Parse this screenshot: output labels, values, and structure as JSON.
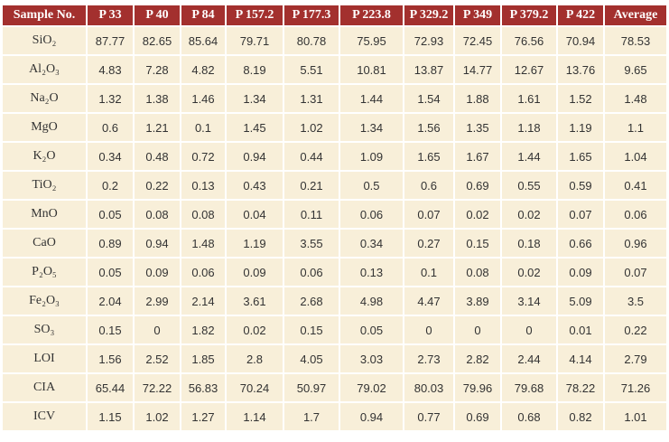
{
  "table": {
    "header": [
      "Sample No.",
      "P 33",
      "P 40",
      "P 84",
      "P 157.2",
      "P 177.3",
      "P 223.8",
      "P 329.2",
      "P 349",
      "P 379.2",
      "P 422",
      "Average"
    ],
    "rows": [
      {
        "label": "SiO₂",
        "values": [
          87.77,
          82.65,
          85.64,
          79.71,
          80.78,
          75.95,
          72.93,
          72.45,
          76.56,
          70.94,
          78.53
        ]
      },
      {
        "label": "Al₂O₃",
        "values": [
          4.83,
          7.28,
          4.82,
          8.19,
          5.51,
          10.81,
          13.87,
          14.77,
          12.67,
          13.76,
          9.65
        ]
      },
      {
        "label": "Na₂O",
        "values": [
          1.32,
          1.38,
          1.46,
          1.34,
          1.31,
          1.44,
          1.54,
          1.88,
          1.61,
          1.52,
          1.48
        ]
      },
      {
        "label": "MgO",
        "values": [
          0.6,
          1.21,
          0.1,
          1.45,
          1.02,
          1.34,
          1.56,
          1.35,
          1.18,
          1.19,
          1.1
        ]
      },
      {
        "label": "K₂O",
        "values": [
          0.34,
          0.48,
          0.72,
          0.94,
          0.44,
          1.09,
          1.65,
          1.67,
          1.44,
          1.65,
          1.04
        ]
      },
      {
        "label": "TiO₂",
        "values": [
          0.2,
          0.22,
          0.13,
          0.43,
          0.21,
          0.5,
          0.6,
          0.69,
          0.55,
          0.59,
          0.41
        ]
      },
      {
        "label": "MnO",
        "values": [
          0.05,
          0.08,
          0.08,
          0.04,
          0.11,
          0.06,
          0.07,
          0.02,
          0.02,
          0.07,
          0.06
        ]
      },
      {
        "label": "CaO",
        "values": [
          0.89,
          0.94,
          1.48,
          1.19,
          3.55,
          0.34,
          0.27,
          0.15,
          0.18,
          0.66,
          0.96
        ]
      },
      {
        "label": "P₂O₅",
        "values": [
          0.05,
          0.09,
          0.06,
          0.09,
          0.06,
          0.13,
          0.1,
          0.08,
          0.02,
          0.09,
          0.07
        ]
      },
      {
        "label": "Fe₂O₃",
        "values": [
          2.04,
          2.99,
          2.14,
          3.61,
          2.68,
          4.98,
          4.47,
          3.89,
          3.14,
          5.09,
          3.5
        ]
      },
      {
        "label": "SO₃",
        "values": [
          0.15,
          0,
          1.82,
          0.02,
          0.15,
          0.05,
          0,
          0,
          0,
          0.01,
          0.22
        ]
      },
      {
        "label": "LOI",
        "values": [
          1.56,
          2.52,
          1.85,
          2.8,
          4.05,
          3.03,
          2.73,
          2.82,
          2.44,
          4.14,
          2.79
        ]
      },
      {
        "label": "CIA",
        "values": [
          65.44,
          72.22,
          56.83,
          70.24,
          50.97,
          79.02,
          80.03,
          79.96,
          79.68,
          78.22,
          71.26
        ]
      },
      {
        "label": "ICV",
        "values": [
          1.15,
          1.02,
          1.27,
          1.14,
          1.7,
          0.94,
          0.77,
          0.69,
          0.68,
          0.82,
          1.01
        ]
      }
    ]
  }
}
